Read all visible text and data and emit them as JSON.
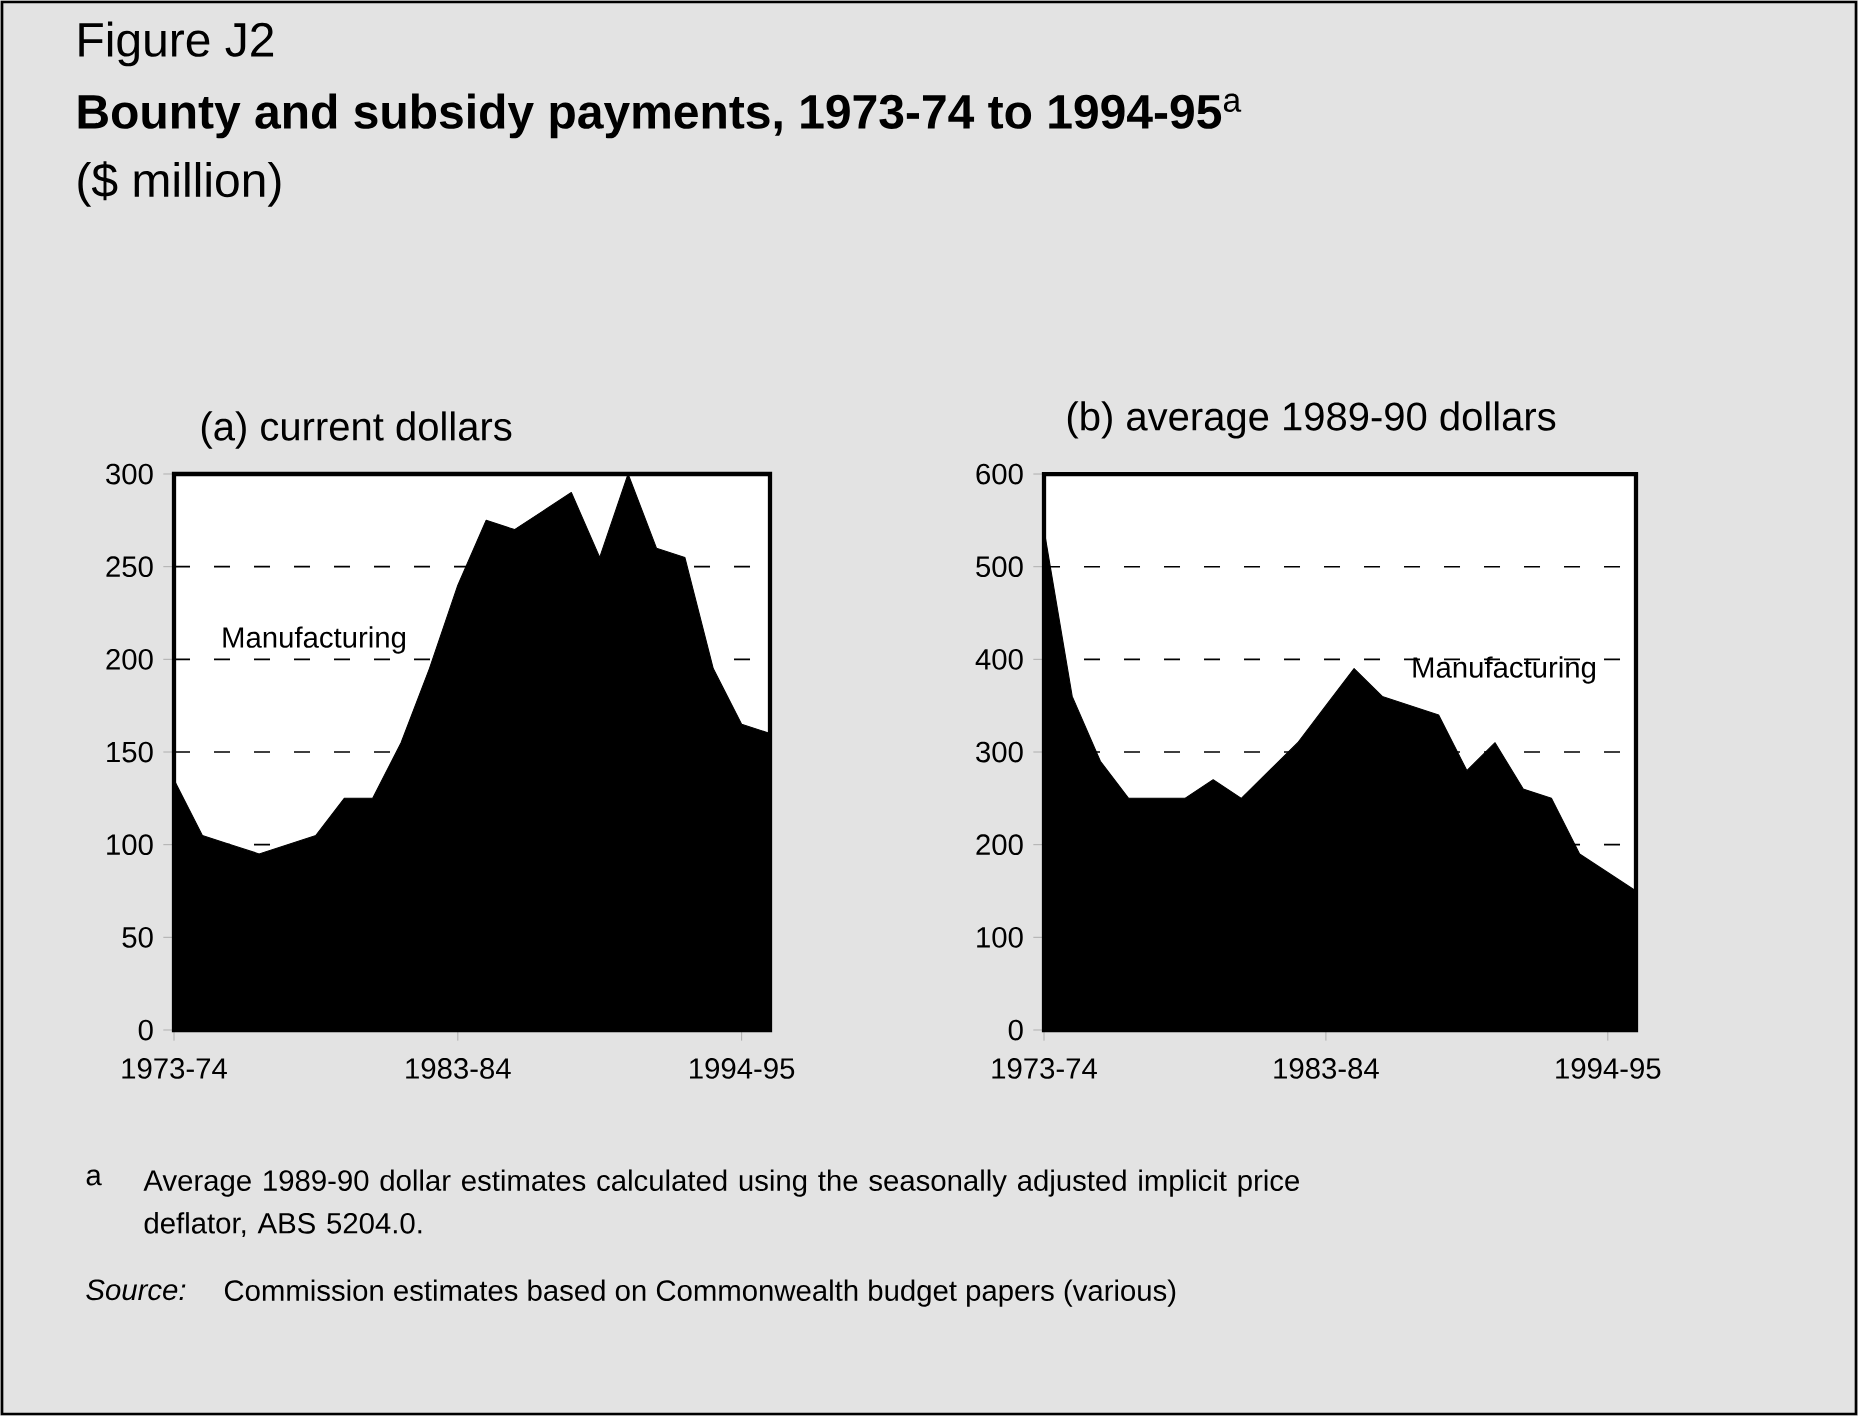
{
  "chart_data": [
    {
      "type": "area",
      "title": "(a) current dollars",
      "categories": [
        "1973-74",
        null,
        null,
        null,
        null,
        null,
        null,
        null,
        null,
        null,
        "1983-84",
        null,
        null,
        null,
        null,
        null,
        null,
        null,
        null,
        null,
        "1994-95",
        null
      ],
      "series": [
        {
          "color": "#000000",
          "values": [
            135,
            105,
            100,
            95,
            100,
            105,
            125,
            125,
            155,
            195,
            240,
            275,
            270,
            280,
            290,
            255,
            300,
            260,
            255,
            195,
            165,
            160
          ]
        }
      ],
      "ylim": [
        0,
        300
      ],
      "yticks": [
        0,
        50,
        100,
        150,
        200,
        250,
        300
      ],
      "grid": "y",
      "annotations": [
        "Figure J2",
        "**Bounty and subsidy payments, 1973-74 to 1994-95**$^{a}$",
        "($ million)",
        "a",
        "Average 1989-90 dollar estimates calculated using the seasonally adjusted implicit price deflator, ABS 5204.0.",
        "Source:",
        "Commission estimates based on Commonwealth budget papers (various)",
        "Manufacturing"
      ]
    },
    {
      "type": "area",
      "title": "(b)  average 1989-90 dollars",
      "categories": [
        "1973-74",
        null,
        null,
        null,
        null,
        null,
        null,
        null,
        null,
        null,
        "1983-84",
        null,
        null,
        null,
        null,
        null,
        null,
        null,
        null,
        null,
        "1994-95",
        null
      ],
      "series": [
        {
          "color": "#000000",
          "values": [
            540,
            360,
            290,
            250,
            250,
            250,
            270,
            250,
            280,
            310,
            350,
            390,
            360,
            350,
            340,
            280,
            310,
            260,
            250,
            190,
            170,
            150
          ]
        }
      ],
      "ylim": [
        0,
        600
      ],
      "yticks": [
        0,
        100,
        200,
        300,
        400,
        500,
        600
      ],
      "grid": "y",
      "annotations": [
        "Manufacturing"
      ]
    }
  ]
}
